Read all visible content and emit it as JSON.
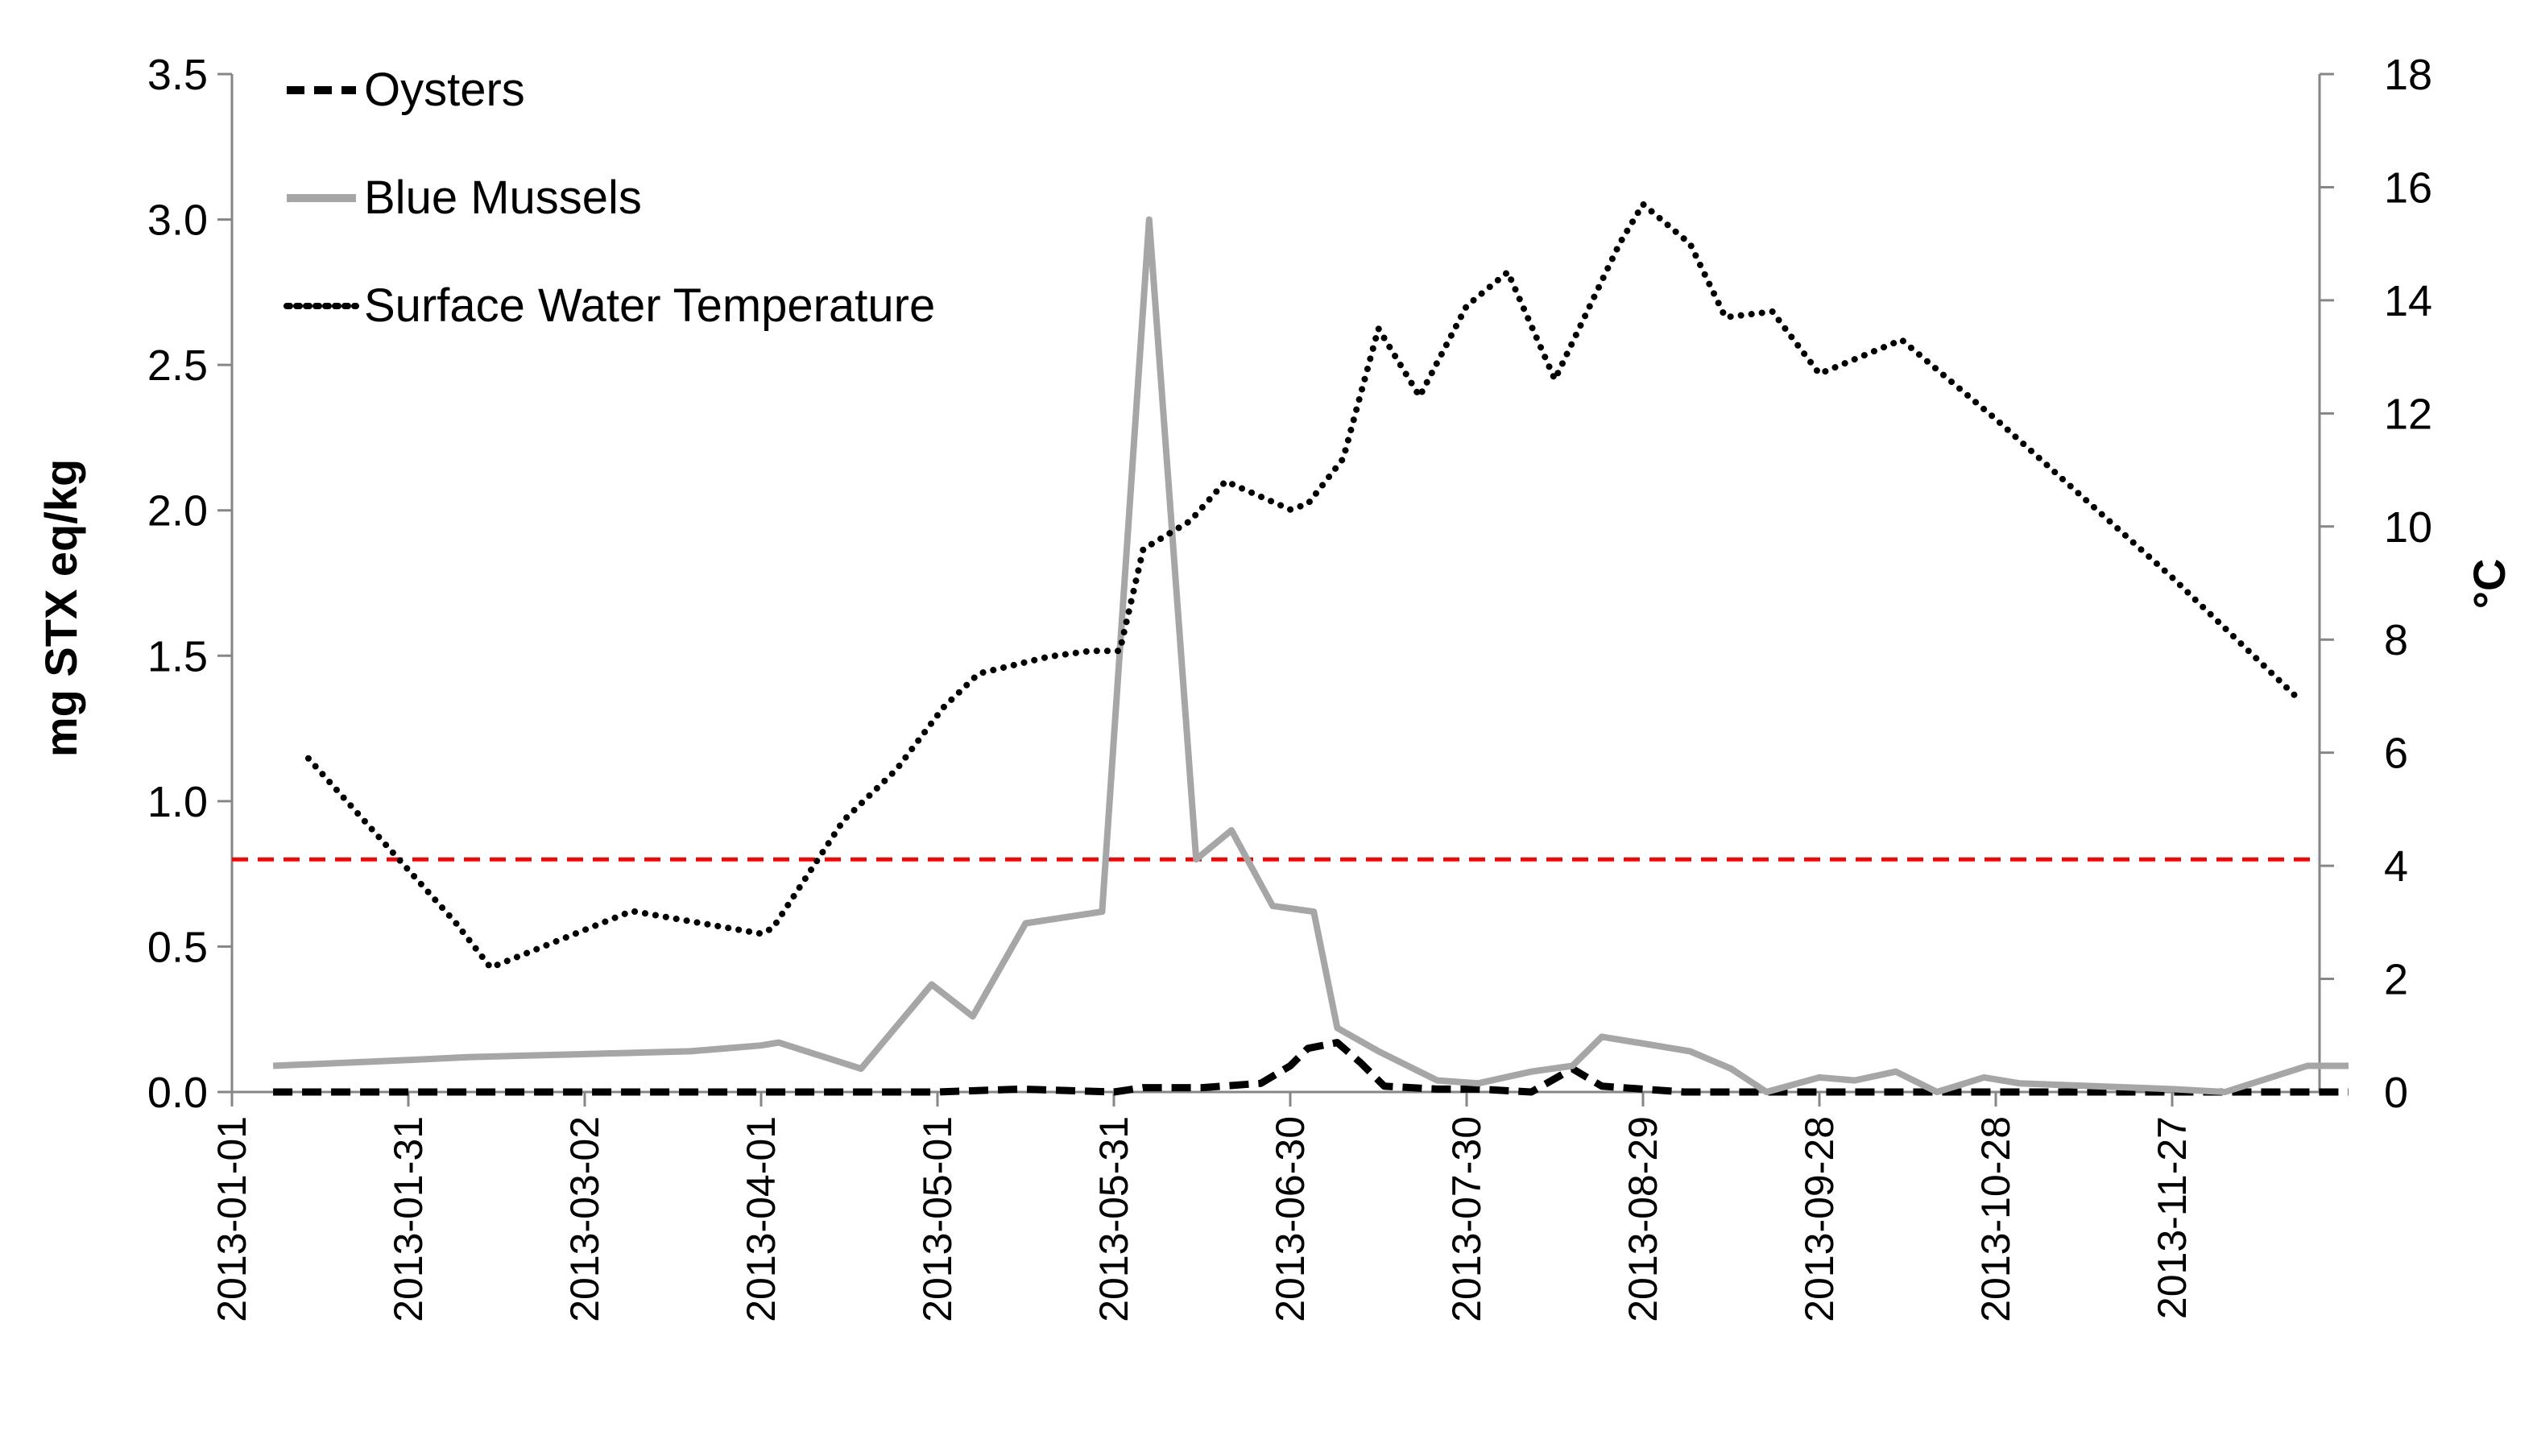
{
  "chart_data": {
    "type": "line",
    "title": "",
    "y_left": {
      "label": "mg STX eq/kg",
      "range": [
        0,
        3.5
      ],
      "ticks": [
        "0.0",
        "0.5",
        "1.0",
        "1.5",
        "2.0",
        "2.5",
        "3.0",
        "3.5"
      ]
    },
    "y_right": {
      "label": "°C",
      "range": [
        0,
        18
      ],
      "ticks": [
        "0",
        "2",
        "4",
        "6",
        "8",
        "10",
        "12",
        "14",
        "16",
        "18"
      ]
    },
    "x_axis": {
      "start_date": "2013-01-01",
      "end_date": "2013-12-27",
      "tick_labels": [
        "2013-01-01",
        "2013-01-31",
        "2013-03-02",
        "2013-04-01",
        "2013-05-01",
        "2013-05-31",
        "2013-06-30",
        "2013-07-30",
        "2013-08-29",
        "2013-09-28",
        "2013-10-28",
        "2013-11-27"
      ]
    },
    "grid": false,
    "legend_position": "top-left",
    "regulatory_limit": {
      "value": 0.8,
      "axis": "left",
      "color": "#ff0000",
      "style": "dashed"
    },
    "series": [
      {
        "name": "Oysters",
        "axis": "left",
        "style": "dashed",
        "color": "#000000",
        "points": [
          [
            "2013-01-08",
            0.0
          ],
          [
            "2013-02-15",
            0.0
          ],
          [
            "2013-03-15",
            0.0
          ],
          [
            "2013-04-01",
            0.0
          ],
          [
            "2013-05-01",
            0.0
          ],
          [
            "2013-05-15",
            0.01
          ],
          [
            "2013-05-31",
            0.0
          ],
          [
            "2013-06-05",
            0.015
          ],
          [
            "2013-06-15",
            0.015
          ],
          [
            "2013-06-25",
            0.03
          ],
          [
            "2013-06-30",
            0.09
          ],
          [
            "2013-07-03",
            0.15
          ],
          [
            "2013-07-08",
            0.17
          ],
          [
            "2013-07-12",
            0.1
          ],
          [
            "2013-07-16",
            0.02
          ],
          [
            "2013-07-25",
            0.01
          ],
          [
            "2013-08-01",
            0.01
          ],
          [
            "2013-08-10",
            0.0
          ],
          [
            "2013-08-17",
            0.08
          ],
          [
            "2013-08-22",
            0.02
          ],
          [
            "2013-09-05",
            0.0
          ],
          [
            "2013-10-01",
            0.0
          ],
          [
            "2013-11-01",
            0.0
          ],
          [
            "2013-11-27",
            0.0
          ],
          [
            "2013-12-27",
            0.0
          ]
        ]
      },
      {
        "name": "Blue Mussels",
        "axis": "left",
        "style": "solid",
        "color": "#a6a6a6",
        "points": [
          [
            "2013-01-08",
            0.09
          ],
          [
            "2013-01-31",
            0.11
          ],
          [
            "2013-02-10",
            0.12
          ],
          [
            "2013-03-01",
            0.13
          ],
          [
            "2013-03-20",
            0.14
          ],
          [
            "2013-04-01",
            0.16
          ],
          [
            "2013-04-04",
            0.17
          ],
          [
            "2013-04-18",
            0.08
          ],
          [
            "2013-04-30",
            0.37
          ],
          [
            "2013-05-07",
            0.26
          ],
          [
            "2013-05-16",
            0.58
          ],
          [
            "2013-05-29",
            0.62
          ],
          [
            "2013-06-06",
            3.0
          ],
          [
            "2013-06-14",
            0.8
          ],
          [
            "2013-06-20",
            0.9
          ],
          [
            "2013-06-27",
            0.64
          ],
          [
            "2013-07-04",
            0.62
          ],
          [
            "2013-07-08",
            0.22
          ],
          [
            "2013-07-15",
            0.14
          ],
          [
            "2013-07-25",
            0.04
          ],
          [
            "2013-08-01",
            0.03
          ],
          [
            "2013-08-10",
            0.07
          ],
          [
            "2013-08-17",
            0.09
          ],
          [
            "2013-08-22",
            0.19
          ],
          [
            "2013-09-06",
            0.14
          ],
          [
            "2013-09-13",
            0.08
          ],
          [
            "2013-09-19",
            0.0
          ],
          [
            "2013-09-28",
            0.05
          ],
          [
            "2013-10-04",
            0.04
          ],
          [
            "2013-10-11",
            0.07
          ],
          [
            "2013-10-18",
            0.0
          ],
          [
            "2013-10-26",
            0.05
          ],
          [
            "2013-11-01",
            0.03
          ],
          [
            "2013-11-27",
            0.01
          ],
          [
            "2013-12-06",
            0.0
          ],
          [
            "2013-12-20",
            0.09
          ],
          [
            "2013-12-27",
            0.09
          ]
        ]
      },
      {
        "name": "Surface Water Temperature",
        "axis": "right",
        "style": "dotted",
        "color": "#000000",
        "points": [
          [
            "2013-01-14",
            5.9
          ],
          [
            "2013-02-08",
            3.0
          ],
          [
            "2013-02-14",
            2.2
          ],
          [
            "2013-03-10",
            3.2
          ],
          [
            "2013-04-01",
            2.8
          ],
          [
            "2013-04-03",
            2.9
          ],
          [
            "2013-04-15",
            4.8
          ],
          [
            "2013-04-24",
            5.7
          ],
          [
            "2013-05-02",
            6.8
          ],
          [
            "2013-05-08",
            7.4
          ],
          [
            "2013-05-20",
            7.7
          ],
          [
            "2013-05-27",
            7.8
          ],
          [
            "2013-06-01",
            7.8
          ],
          [
            "2013-06-05",
            9.6
          ],
          [
            "2013-06-13",
            10.1
          ],
          [
            "2013-06-19",
            10.8
          ],
          [
            "2013-06-30",
            10.3
          ],
          [
            "2013-07-03",
            10.4
          ],
          [
            "2013-07-09",
            11.2
          ],
          [
            "2013-07-15",
            13.5
          ],
          [
            "2013-07-22",
            12.3
          ],
          [
            "2013-07-30",
            13.9
          ],
          [
            "2013-08-06",
            14.5
          ],
          [
            "2013-08-14",
            12.6
          ],
          [
            "2013-08-25",
            15.0
          ],
          [
            "2013-08-29",
            15.7
          ],
          [
            "2013-09-06",
            15.0
          ],
          [
            "2013-09-12",
            13.7
          ],
          [
            "2013-09-20",
            13.8
          ],
          [
            "2013-09-28",
            12.7
          ],
          [
            "2013-10-12",
            13.3
          ],
          [
            "2013-10-28",
            11.9
          ],
          [
            "2013-11-27",
            9.1
          ],
          [
            "2013-12-19",
            6.9
          ]
        ]
      }
    ]
  }
}
